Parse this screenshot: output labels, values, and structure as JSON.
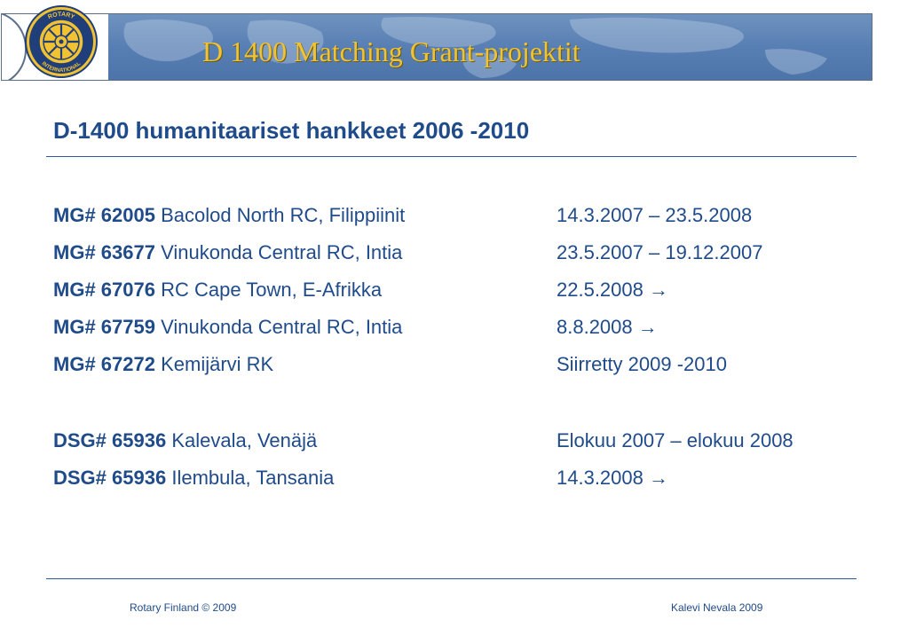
{
  "header": {
    "title": "D 1400 Matching Grant-projektit",
    "logo_text_top": "ROTARY",
    "logo_text_bottom": "INTERNATIONAL",
    "banner_color": "#5a80b4",
    "title_color": "#f1c232"
  },
  "subtitle": "D-1400 humanitaariset hankkeet 2006 -2010",
  "projects": [
    {
      "code": "MG# 62005",
      "name": "Bacolod North RC, Filippiinit",
      "dates": "14.3.2007 – 23.5.2008"
    },
    {
      "code": "MG# 63677",
      "name": "Vinukonda Central RC, Intia",
      "dates": "23.5.2007 – 19.12.2007"
    },
    {
      "code": "MG# 67076",
      "name": "RC Cape Town, E-Afrikka",
      "dates": "22.5.2008 →"
    },
    {
      "code": "MG# 67759",
      "name": "Vinukonda Central RC, Intia",
      "dates": "8.8.2008 →"
    },
    {
      "code": "MG# 67272",
      "name": "Kemijärvi RK",
      "dates": "Siirretty 2009 -2010"
    }
  ],
  "grants": [
    {
      "code": "DSG# 65936",
      "name": "Kalevala, Venäjä",
      "dates": "Elokuu 2007 – elokuu 2008"
    },
    {
      "code": "DSG# 65936",
      "name": "Ilembula, Tansania",
      "dates": "14.3.2008 →"
    }
  ],
  "footer": {
    "left": "Rotary Finland © 2009",
    "right": "Kalevi Nevala 2009"
  },
  "text_color": "#1f4b8a"
}
